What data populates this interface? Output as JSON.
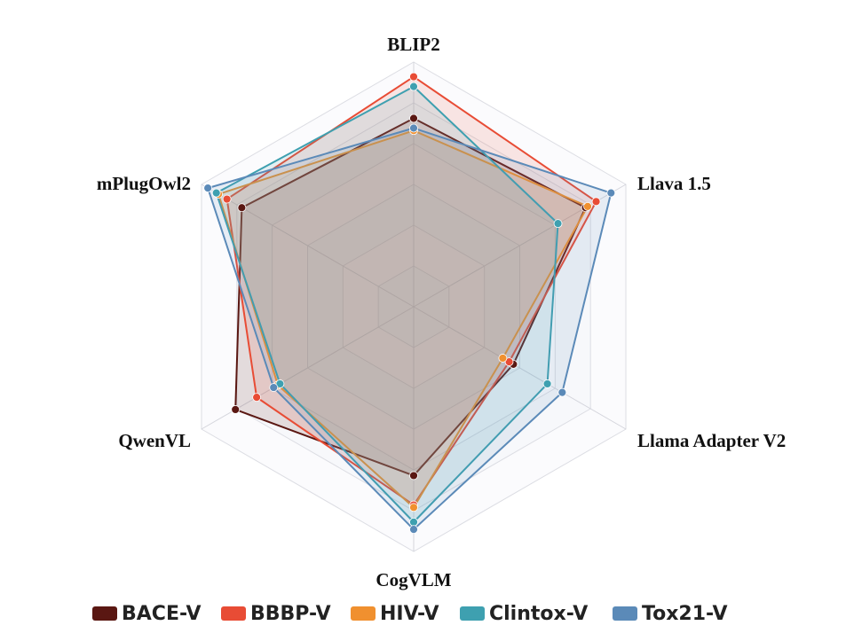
{
  "chart_data": {
    "type": "radar",
    "axes": [
      "BLIP2",
      "Llava 1.5",
      "Llama Adapter V2",
      "CogVLM",
      "QwenVL",
      "mPlugOwl2"
    ],
    "range": [
      0,
      1
    ],
    "grid_levels": 6,
    "series": [
      {
        "name": "BACE-V",
        "color": "#5a1712",
        "values": [
          0.77,
          0.81,
          0.47,
          0.69,
          0.84,
          0.81
        ]
      },
      {
        "name": "BBBP-V",
        "color": "#e84c35",
        "values": [
          0.94,
          0.86,
          0.45,
          0.81,
          0.74,
          0.88
        ]
      },
      {
        "name": "HIV-V",
        "color": "#f0902f",
        "values": [
          0.72,
          0.82,
          0.42,
          0.82,
          0.64,
          0.92
        ]
      },
      {
        "name": "Clintox-V",
        "color": "#3ea0b0",
        "values": [
          0.9,
          0.68,
          0.63,
          0.88,
          0.63,
          0.93
        ]
      },
      {
        "name": "Tox21-V",
        "color": "#5b8ab8",
        "values": [
          0.73,
          0.93,
          0.7,
          0.91,
          0.66,
          0.97
        ]
      }
    ]
  }
}
